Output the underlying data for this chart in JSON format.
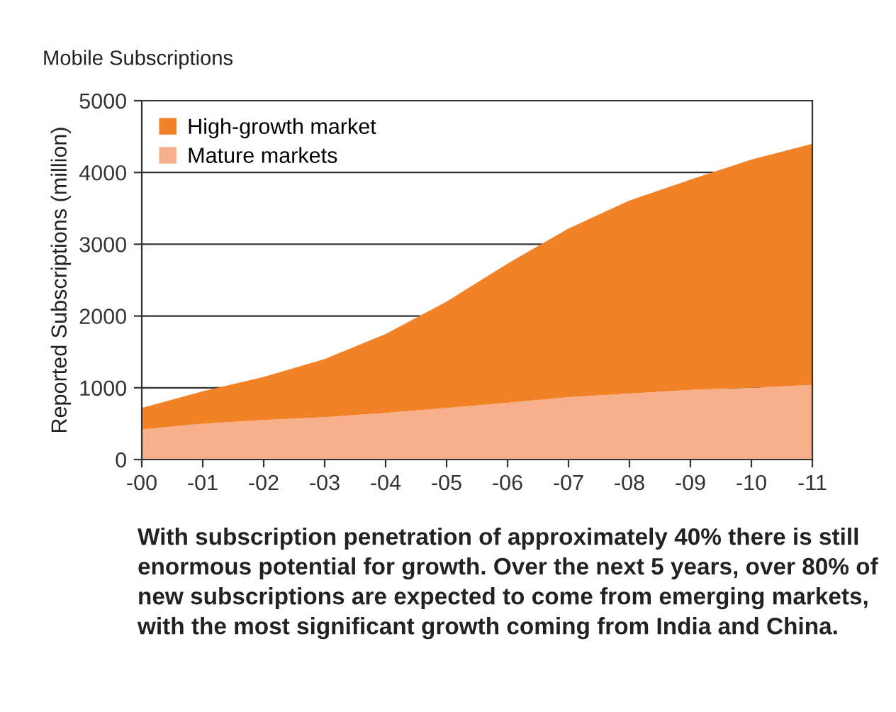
{
  "chart_data": {
    "type": "area",
    "stacked": true,
    "title": "Mobile Subscriptions",
    "ylabel": "Reported Subscriptions (million)",
    "categories": [
      "-00",
      "-01",
      "-02",
      "-03",
      "-04",
      "-05",
      "-06",
      "-07",
      "-08",
      "-09",
      "-10",
      "-11"
    ],
    "series": [
      {
        "name": "Mature markets",
        "color": "#f8b08c",
        "values": [
          420,
          500,
          550,
          590,
          650,
          720,
          790,
          870,
          920,
          970,
          1000,
          1040
        ]
      },
      {
        "name": "High-growth market",
        "color": "#f28227",
        "values": [
          300,
          450,
          600,
          810,
          1100,
          1480,
          1940,
          2350,
          2690,
          2930,
          3180,
          3360
        ]
      }
    ],
    "ylim": [
      0,
      5000
    ],
    "yticks": [
      0,
      1000,
      2000,
      3000,
      4000,
      5000
    ],
    "grid": "y",
    "legend": "top left",
    "annotations": [
      "With subscription penetration of approximately 40% there is still enormous potential for growth. Over the next 5 years, over 80% of new subscriptions are expected to come from emerging markets, with the most significant growth coming from India and China."
    ]
  }
}
